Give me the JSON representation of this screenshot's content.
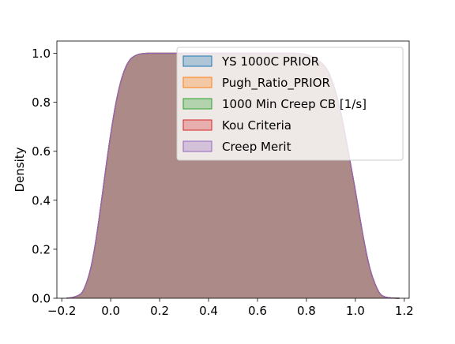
{
  "chart_data": {
    "type": "area",
    "title": "",
    "xlabel": "",
    "ylabel": "Density",
    "xlim": [
      -0.22,
      1.22
    ],
    "ylim": [
      0.0,
      1.05
    ],
    "xticks": [
      -0.2,
      0.0,
      0.2,
      0.4,
      0.6,
      0.8,
      1.0,
      1.2
    ],
    "xtick_labels": [
      "−0.2",
      "0.0",
      "0.2",
      "0.4",
      "0.6",
      "0.8",
      "1.0",
      "1.2"
    ],
    "yticks": [
      0.0,
      0.2,
      0.4,
      0.6,
      0.8,
      1.0
    ],
    "ytick_labels": [
      "0.0",
      "0.2",
      "0.4",
      "0.6",
      "0.8",
      "1.0"
    ],
    "grid": false,
    "legend_position": "top-right",
    "x": [
      -0.18,
      -0.15,
      -0.12,
      -0.1,
      -0.08,
      -0.06,
      -0.04,
      -0.02,
      0.0,
      0.02,
      0.04,
      0.06,
      0.08,
      0.1,
      0.12,
      0.15,
      0.2,
      0.3,
      0.4,
      0.5,
      0.6,
      0.7,
      0.75,
      0.8,
      0.85,
      0.88,
      0.9,
      0.92,
      0.94,
      0.96,
      0.98,
      1.0,
      1.02,
      1.04,
      1.06,
      1.08,
      1.1,
      1.12,
      1.15,
      1.18
    ],
    "series": [
      {
        "name": "YS 1000C PRIOR",
        "color": "#1f77b4",
        "values": [
          0.0,
          0.005,
          0.02,
          0.06,
          0.13,
          0.24,
          0.38,
          0.53,
          0.67,
          0.79,
          0.88,
          0.94,
          0.975,
          0.99,
          0.997,
          1.0,
          1.0,
          1.0,
          1.0,
          1.0,
          1.0,
          1.0,
          1.0,
          0.995,
          0.97,
          0.94,
          0.9,
          0.84,
          0.76,
          0.66,
          0.55,
          0.44,
          0.32,
          0.21,
          0.12,
          0.06,
          0.02,
          0.006,
          0.001,
          0.0
        ]
      },
      {
        "name": "Pugh_Ratio_PRIOR",
        "color": "#ff7f0e",
        "values": [
          0.0,
          0.005,
          0.02,
          0.06,
          0.13,
          0.24,
          0.38,
          0.53,
          0.67,
          0.79,
          0.88,
          0.94,
          0.975,
          0.99,
          0.997,
          1.0,
          1.0,
          1.0,
          1.0,
          1.0,
          1.0,
          1.0,
          1.0,
          0.995,
          0.97,
          0.94,
          0.9,
          0.84,
          0.76,
          0.66,
          0.55,
          0.44,
          0.32,
          0.21,
          0.12,
          0.06,
          0.02,
          0.006,
          0.001,
          0.0
        ]
      },
      {
        "name": "1000 Min Creep CB [1/s]",
        "color": "#2ca02c",
        "values": [
          0.0,
          0.005,
          0.02,
          0.06,
          0.13,
          0.24,
          0.38,
          0.53,
          0.67,
          0.79,
          0.88,
          0.94,
          0.975,
          0.99,
          0.997,
          1.0,
          1.0,
          1.0,
          1.0,
          1.0,
          1.0,
          1.0,
          1.0,
          0.995,
          0.97,
          0.94,
          0.9,
          0.84,
          0.76,
          0.66,
          0.55,
          0.44,
          0.32,
          0.21,
          0.12,
          0.06,
          0.02,
          0.006,
          0.001,
          0.0
        ]
      },
      {
        "name": "Kou Criteria",
        "color": "#d62728",
        "values": [
          0.0,
          0.005,
          0.02,
          0.06,
          0.13,
          0.24,
          0.38,
          0.53,
          0.67,
          0.79,
          0.88,
          0.94,
          0.975,
          0.99,
          0.997,
          1.0,
          1.0,
          1.0,
          1.0,
          1.0,
          1.0,
          1.0,
          1.0,
          0.995,
          0.97,
          0.94,
          0.9,
          0.84,
          0.76,
          0.66,
          0.55,
          0.44,
          0.32,
          0.21,
          0.12,
          0.06,
          0.02,
          0.006,
          0.001,
          0.0
        ]
      },
      {
        "name": "Creep Merit",
        "color": "#9467bd",
        "values": [
          0.0,
          0.005,
          0.02,
          0.06,
          0.13,
          0.24,
          0.38,
          0.53,
          0.67,
          0.79,
          0.88,
          0.94,
          0.975,
          0.99,
          0.997,
          1.0,
          1.0,
          1.0,
          1.0,
          1.0,
          1.0,
          1.0,
          1.0,
          0.995,
          0.97,
          0.94,
          0.9,
          0.84,
          0.76,
          0.66,
          0.55,
          0.44,
          0.32,
          0.21,
          0.12,
          0.06,
          0.02,
          0.006,
          0.001,
          0.0
        ]
      }
    ]
  }
}
